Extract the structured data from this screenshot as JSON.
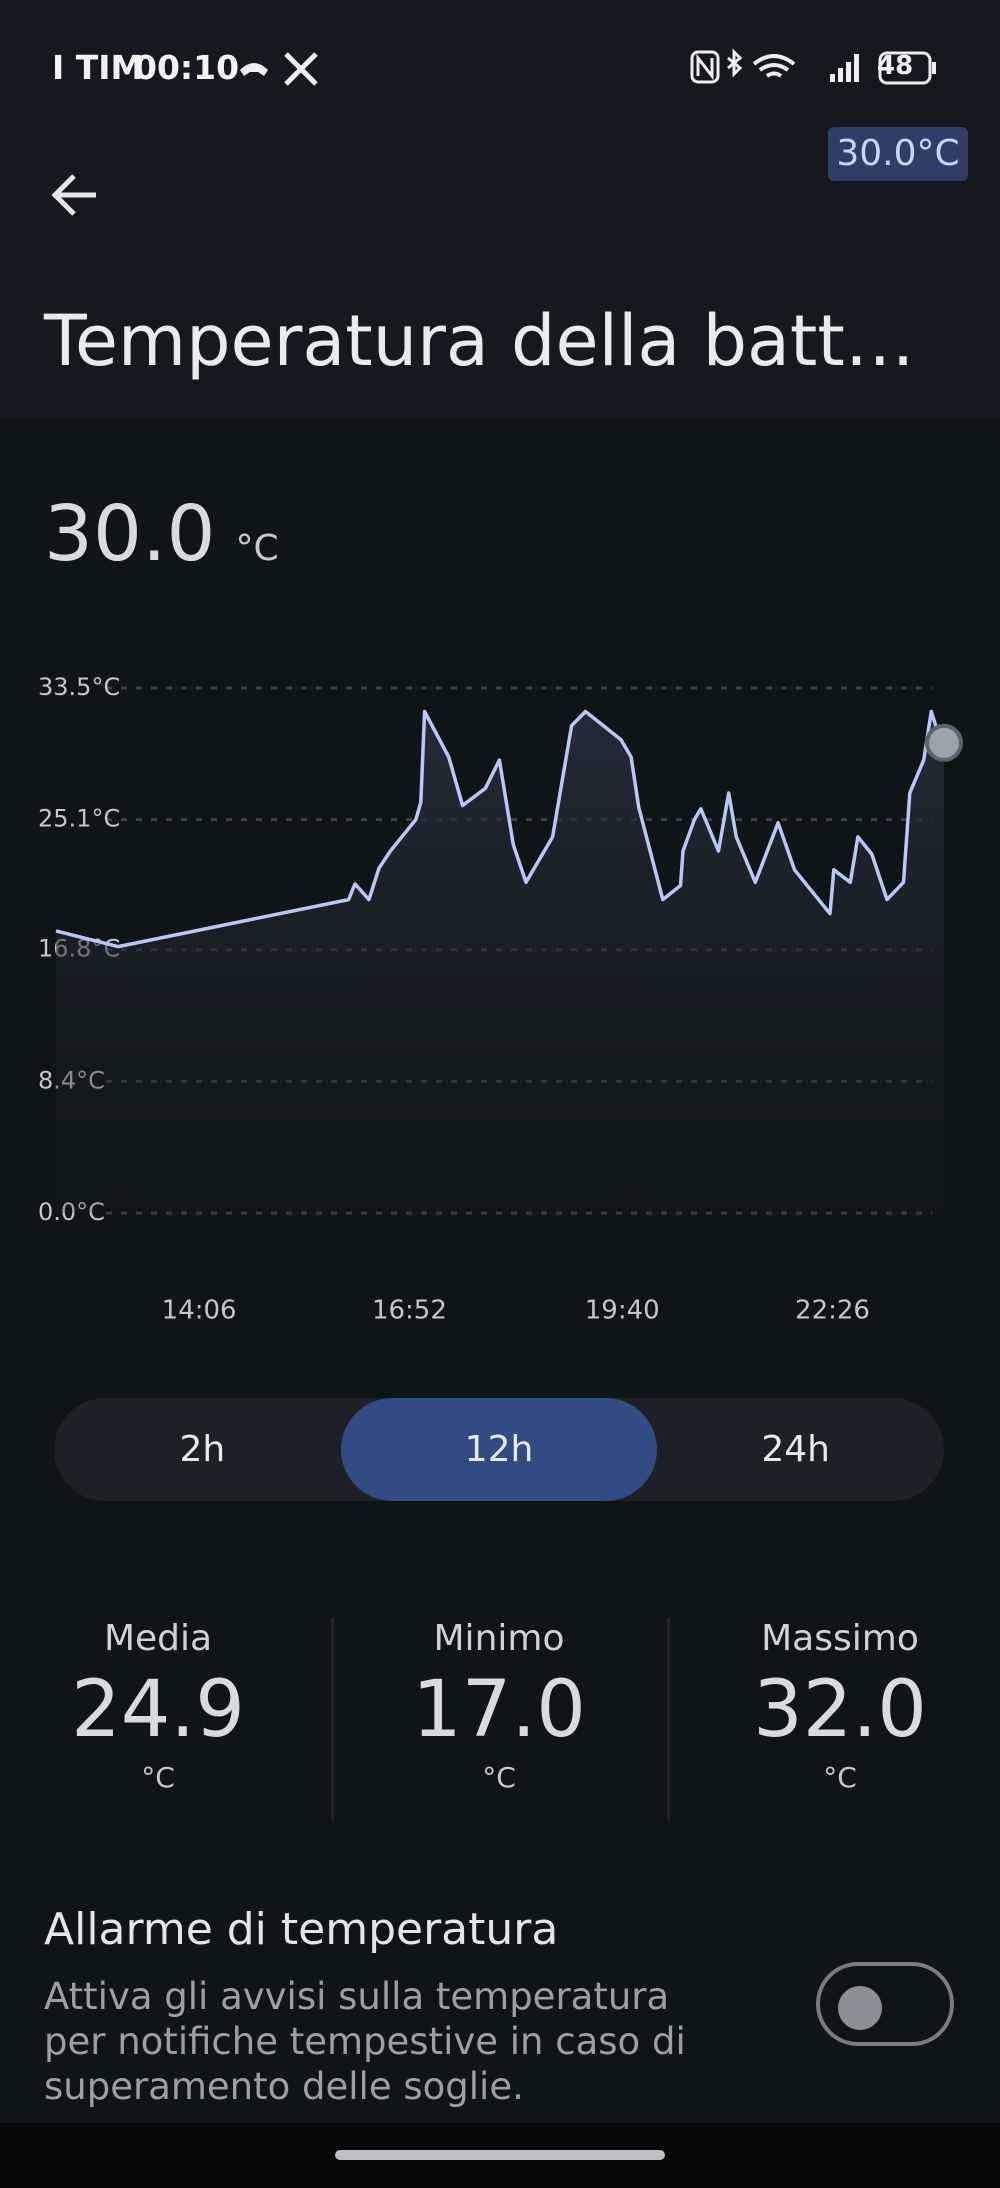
{
  "status_bar": {
    "carrier": "I TIM",
    "time": "00:10",
    "battery": "48"
  },
  "badge": "30.0°C",
  "header": {
    "title": "Temperatura della batt…"
  },
  "current": {
    "value": "30.0",
    "unit": "°C"
  },
  "chart_data": {
    "type": "line",
    "color": "#b8c8f5",
    "x": [
      733,
      782,
      964,
      969,
      980,
      988,
      997,
      1017,
      1021,
      1024,
      1043,
      1054,
      1072,
      1083,
      1094,
      1104,
      1125,
      1140,
      1151,
      1179,
      1187,
      1193,
      1212,
      1226,
      1228,
      1237,
      1242,
      1256,
      1264,
      1270,
      1285,
      1303,
      1316,
      1344,
      1347,
      1360,
      1366,
      1377,
      1389,
      1402,
      1407,
      1418,
      1424,
      1429,
      1434
    ],
    "values": [
      18.0,
      17.0,
      20.0,
      21.0,
      20.0,
      22.0,
      23.1,
      25.1,
      26.2,
      32.0,
      29.1,
      26.0,
      27.1,
      28.9,
      23.5,
      21.1,
      24.0,
      31.1,
      32.0,
      30.2,
      29.1,
      25.9,
      20.0,
      20.9,
      23.1,
      25.1,
      25.8,
      23.1,
      26.8,
      24.0,
      21.1,
      24.9,
      21.9,
      19.1,
      21.9,
      21.1,
      24.0,
      22.9,
      20.0,
      21.1,
      26.8,
      28.9,
      32.0,
      30.7,
      30.0
    ],
    "xlim": [
      733,
      1434
    ],
    "xticks": [
      {
        "value": 846,
        "label": "14:06"
      },
      {
        "value": 1012,
        "label": "16:52"
      },
      {
        "value": 1180,
        "label": "19:40"
      },
      {
        "value": 1346,
        "label": "22:26"
      }
    ],
    "ylim": [
      0,
      33.5
    ],
    "yticks": [
      {
        "value": 0,
        "label": "0.0°C"
      },
      {
        "value": 8.4,
        "label": "8.4°C"
      },
      {
        "value": 16.8,
        "label": "16.8°C"
      },
      {
        "value": 25.1,
        "label": "25.1°C"
      },
      {
        "value": 33.5,
        "label": "33.5°C"
      }
    ],
    "grid": true
  },
  "range": {
    "options": [
      "2h",
      "12h",
      "24h"
    ],
    "selected": 1
  },
  "stats": [
    {
      "label": "Media",
      "value": "24.9",
      "unit": "°C"
    },
    {
      "label": "Minimo",
      "value": "17.0",
      "unit": "°C"
    },
    {
      "label": "Massimo",
      "value": "32.0",
      "unit": "°C"
    }
  ],
  "alarm": {
    "title": "Allarme di temperatura",
    "description": [
      "Attiva gli avvisi sulla temperatura",
      "per notifiche tempestive in caso di",
      "superamento delle soglie."
    ],
    "enabled": false
  }
}
